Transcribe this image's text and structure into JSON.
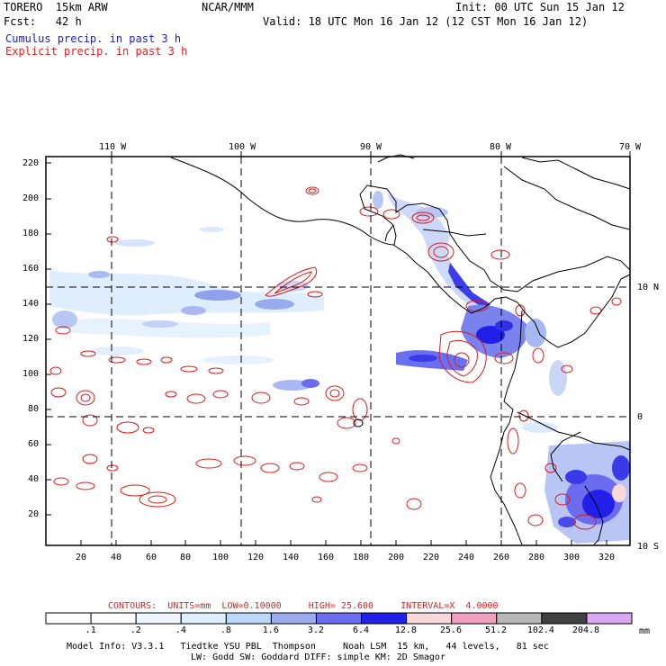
{
  "header": {
    "model": "TORERO  15km ARW",
    "org": "NCAR/MMM",
    "init": "Init: 00 UTC Sun 15 Jan 12",
    "fcst": "Fcst:   42 h",
    "valid": "Valid: 18 UTC Mon 16 Jan 12 (12 CST Mon 16 Jan 12)",
    "legend_cumulus": "Cumulus precip. in past 3 h",
    "legend_explicit": "Explicit precip. in past 3 h"
  },
  "axes": {
    "top_lon_labels": [
      "110 W",
      "100 W",
      "90 W",
      "80 W",
      "70 W"
    ],
    "right_lat_labels": [
      "10 N",
      "0",
      "10 S"
    ],
    "left_ticks": [
      "220",
      "200",
      "180",
      "160",
      "140",
      "120",
      "100",
      "80",
      "60",
      "40",
      "20"
    ],
    "bottom_ticks": [
      "20",
      "40",
      "60",
      "80",
      "100",
      "120",
      "140",
      "160",
      "180",
      "200",
      "220",
      "240",
      "260",
      "280",
      "300",
      "320"
    ]
  },
  "contours_line": {
    "prefix": "CONTOURS:  UNITS=mm  LOW=",
    "low": "0.10000",
    "high_label": "HIGH=",
    "high": "25.600",
    "interval_label": "INTERVAL=X",
    "interval": "4.0000"
  },
  "colorbar": {
    "labels": [
      ".1",
      ".2",
      ".4",
      ".8",
      "1.6",
      "3.2",
      "6.4",
      "12.8",
      "25.6",
      "51.2",
      "102.4",
      "204.8"
    ],
    "unit": "mm",
    "colors": [
      "#ffffff",
      "#ffffff",
      "#f0f6ff",
      "#dceeff",
      "#bcd8f8",
      "#9cacef",
      "#6c6cf0",
      "#2020e8",
      "#f8d8d8",
      "#f2a0c0",
      "#b8b8b8",
      "#404040",
      "#d8a8f0"
    ]
  },
  "footer": {
    "line1": "Model Info: V3.3.1   Tiedtke YSU PBL  Thompson     Noah LSM  15 km,   44 levels,   81 sec",
    "line2": "LW: Godd SW: Goddard DIFF: simple KM: 2D Smagor"
  },
  "colors": {
    "cumulus": "#2a2ae6",
    "explicit": "#e01818",
    "coast": "#000000"
  }
}
